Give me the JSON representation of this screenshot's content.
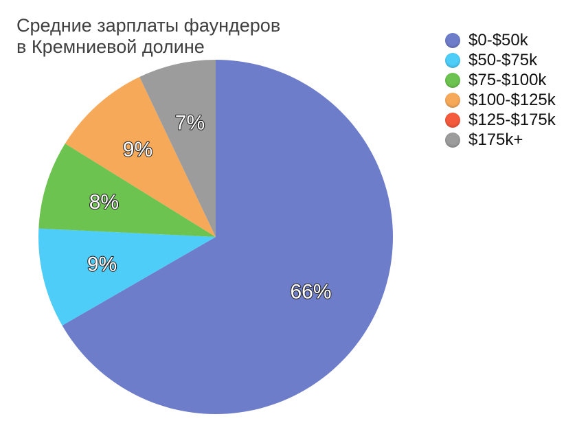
{
  "chart_data": {
    "type": "pie",
    "title": "Средние зарплаты фаундеров",
    "subtitle": "в Кремниевой долине",
    "legend_position": "top-right",
    "slices": [
      {
        "label": "$0-$50k",
        "value": 66,
        "value_label": "66%",
        "color": "#6e7dca"
      },
      {
        "label": "$50-$75k",
        "value": 9,
        "value_label": "9%",
        "color": "#4dcdf8"
      },
      {
        "label": "$75-$100k",
        "value": 8,
        "value_label": "8%",
        "color": "#6cc34f"
      },
      {
        "label": "$100-$125k",
        "value": 9,
        "value_label": "9%",
        "color": "#f7a95a"
      },
      {
        "label": "$125-$175k",
        "value": 0,
        "value_label": "",
        "color": "#f45a3c"
      },
      {
        "label": "$175k+",
        "value": 7,
        "value_label": "7%",
        "color": "#9c9c9c"
      }
    ]
  }
}
